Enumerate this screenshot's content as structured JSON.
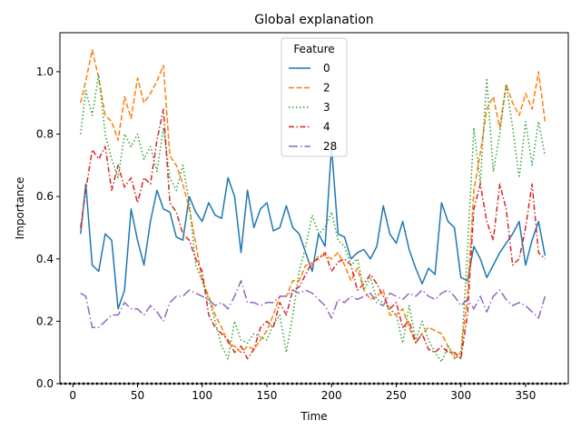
{
  "chart_data": {
    "type": "line",
    "title": "Global explanation",
    "xlabel": "Time",
    "ylabel": "Importance",
    "xlim": [
      -10,
      383
    ],
    "ylim": [
      0,
      1.125
    ],
    "xticks": [
      0,
      50,
      100,
      150,
      200,
      250,
      300,
      350
    ],
    "yticks": [
      0.0,
      0.2,
      0.4,
      0.6,
      0.8,
      1.0
    ],
    "ytick_labels": [
      "0.0",
      "0.2",
      "0.4",
      "0.6",
      "0.8",
      "1.0"
    ],
    "grid": false,
    "legend": {
      "title": "Feature",
      "placement": "top-center"
    },
    "baseline": {
      "y": 0,
      "style": "dotted",
      "color": "#000000"
    },
    "series": [
      {
        "name": "0",
        "color": "#1f77b4",
        "dash": "solid",
        "x": [
          6,
          10,
          15,
          20,
          25,
          30,
          35,
          40,
          45,
          50,
          55,
          60,
          65,
          70,
          75,
          80,
          85,
          90,
          95,
          100,
          105,
          110,
          115,
          120,
          125,
          130,
          135,
          140,
          145,
          150,
          155,
          160,
          165,
          170,
          175,
          180,
          185,
          190,
          195,
          200,
          205,
          210,
          215,
          220,
          225,
          230,
          235,
          240,
          245,
          250,
          255,
          260,
          265,
          270,
          275,
          280,
          285,
          290,
          295,
          300,
          305,
          310,
          315,
          320,
          325,
          330,
          335,
          340,
          345,
          350,
          355,
          360,
          365
        ],
        "values": [
          0.48,
          0.64,
          0.38,
          0.36,
          0.48,
          0.46,
          0.24,
          0.3,
          0.56,
          0.46,
          0.38,
          0.52,
          0.62,
          0.56,
          0.55,
          0.47,
          0.46,
          0.6,
          0.55,
          0.52,
          0.58,
          0.54,
          0.53,
          0.66,
          0.6,
          0.42,
          0.62,
          0.5,
          0.56,
          0.58,
          0.49,
          0.5,
          0.57,
          0.5,
          0.48,
          0.42,
          0.36,
          0.48,
          0.44,
          0.76,
          0.48,
          0.47,
          0.4,
          0.42,
          0.43,
          0.4,
          0.44,
          0.57,
          0.48,
          0.45,
          0.52,
          0.43,
          0.37,
          0.32,
          0.37,
          0.35,
          0.58,
          0.52,
          0.5,
          0.34,
          0.33,
          0.44,
          0.4,
          0.34,
          0.38,
          0.42,
          0.45,
          0.48,
          0.52,
          0.38,
          0.46,
          0.52,
          0.41
        ]
      },
      {
        "name": "2",
        "color": "#ff7f0e",
        "dash": "dashed",
        "x": [
          6,
          10,
          15,
          20,
          25,
          30,
          35,
          40,
          45,
          50,
          55,
          60,
          65,
          70,
          75,
          80,
          85,
          90,
          95,
          100,
          105,
          110,
          115,
          120,
          125,
          130,
          135,
          140,
          145,
          150,
          155,
          160,
          165,
          170,
          175,
          180,
          185,
          190,
          195,
          200,
          205,
          210,
          215,
          220,
          225,
          230,
          235,
          240,
          245,
          250,
          255,
          260,
          265,
          270,
          275,
          280,
          285,
          290,
          295,
          300,
          305,
          310,
          315,
          320,
          325,
          330,
          335,
          340,
          345,
          350,
          355,
          360,
          365
        ],
        "values": [
          0.9,
          0.97,
          1.07,
          0.98,
          0.86,
          0.84,
          0.78,
          0.92,
          0.85,
          0.98,
          0.9,
          0.93,
          0.97,
          1.02,
          0.73,
          0.7,
          0.64,
          0.56,
          0.45,
          0.33,
          0.28,
          0.22,
          0.18,
          0.13,
          0.12,
          0.1,
          0.12,
          0.11,
          0.14,
          0.17,
          0.22,
          0.28,
          0.28,
          0.33,
          0.33,
          0.38,
          0.38,
          0.41,
          0.41,
          0.4,
          0.42,
          0.38,
          0.33,
          0.37,
          0.3,
          0.27,
          0.28,
          0.3,
          0.22,
          0.22,
          0.24,
          0.18,
          0.13,
          0.16,
          0.18,
          0.17,
          0.16,
          0.12,
          0.08,
          0.1,
          0.28,
          0.62,
          0.74,
          0.88,
          0.92,
          0.82,
          0.96,
          0.9,
          0.86,
          0.93,
          0.88,
          1.0,
          0.84
        ]
      },
      {
        "name": "3",
        "color": "#2ca02c",
        "dash": "dotted",
        "x": [
          6,
          10,
          15,
          20,
          25,
          30,
          35,
          40,
          45,
          50,
          55,
          60,
          65,
          70,
          75,
          80,
          85,
          90,
          95,
          100,
          105,
          110,
          115,
          120,
          125,
          130,
          135,
          140,
          145,
          150,
          155,
          160,
          165,
          170,
          175,
          180,
          185,
          190,
          195,
          200,
          205,
          210,
          215,
          220,
          225,
          230,
          235,
          240,
          245,
          250,
          255,
          260,
          265,
          270,
          275,
          280,
          285,
          290,
          295,
          300,
          305,
          310,
          315,
          320,
          325,
          330,
          335,
          340,
          345,
          350,
          355,
          360,
          365
        ],
        "values": [
          0.8,
          0.94,
          0.86,
          0.99,
          0.8,
          0.72,
          0.66,
          0.8,
          0.76,
          0.8,
          0.72,
          0.76,
          0.68,
          0.82,
          0.66,
          0.62,
          0.7,
          0.58,
          0.38,
          0.33,
          0.27,
          0.2,
          0.12,
          0.08,
          0.2,
          0.14,
          0.13,
          0.16,
          0.15,
          0.14,
          0.19,
          0.22,
          0.1,
          0.22,
          0.36,
          0.44,
          0.54,
          0.48,
          0.5,
          0.55,
          0.46,
          0.44,
          0.38,
          0.4,
          0.3,
          0.34,
          0.27,
          0.26,
          0.24,
          0.22,
          0.13,
          0.25,
          0.14,
          0.2,
          0.14,
          0.1,
          0.07,
          0.12,
          0.09,
          0.08,
          0.42,
          0.82,
          0.64,
          0.98,
          0.68,
          0.8,
          0.96,
          0.82,
          0.66,
          0.84,
          0.7,
          0.84,
          0.73
        ]
      },
      {
        "name": "4",
        "color": "#d62728",
        "dash": "dashdot",
        "x": [
          6,
          10,
          15,
          20,
          25,
          30,
          35,
          40,
          45,
          50,
          55,
          60,
          65,
          70,
          75,
          80,
          85,
          90,
          95,
          100,
          105,
          110,
          115,
          120,
          125,
          130,
          135,
          140,
          145,
          150,
          155,
          160,
          165,
          170,
          175,
          180,
          185,
          190,
          195,
          200,
          205,
          210,
          215,
          220,
          225,
          230,
          235,
          240,
          245,
          250,
          255,
          260,
          265,
          270,
          275,
          280,
          285,
          290,
          295,
          300,
          305,
          310,
          315,
          320,
          325,
          330,
          335,
          340,
          345,
          350,
          355,
          360,
          365
        ],
        "values": [
          0.5,
          0.62,
          0.75,
          0.72,
          0.76,
          0.62,
          0.7,
          0.63,
          0.66,
          0.58,
          0.66,
          0.64,
          0.78,
          0.88,
          0.58,
          0.55,
          0.48,
          0.46,
          0.4,
          0.36,
          0.22,
          0.18,
          0.16,
          0.14,
          0.1,
          0.12,
          0.08,
          0.11,
          0.18,
          0.2,
          0.18,
          0.26,
          0.22,
          0.3,
          0.31,
          0.35,
          0.39,
          0.4,
          0.42,
          0.36,
          0.39,
          0.4,
          0.38,
          0.3,
          0.32,
          0.35,
          0.32,
          0.28,
          0.24,
          0.26,
          0.18,
          0.2,
          0.13,
          0.16,
          0.11,
          0.1,
          0.12,
          0.1,
          0.1,
          0.08,
          0.22,
          0.56,
          0.64,
          0.52,
          0.46,
          0.64,
          0.56,
          0.38,
          0.4,
          0.5,
          0.64,
          0.42,
          0.4
        ]
      },
      {
        "name": "28",
        "color": "#9467bd",
        "dash": "longdashdot",
        "x": [
          6,
          10,
          15,
          20,
          25,
          30,
          35,
          40,
          45,
          50,
          55,
          60,
          65,
          70,
          75,
          80,
          85,
          90,
          95,
          100,
          105,
          110,
          115,
          120,
          125,
          130,
          135,
          140,
          145,
          150,
          155,
          160,
          165,
          170,
          175,
          180,
          185,
          190,
          195,
          200,
          205,
          210,
          215,
          220,
          225,
          230,
          235,
          240,
          245,
          250,
          255,
          260,
          265,
          270,
          275,
          280,
          285,
          290,
          295,
          300,
          305,
          310,
          315,
          320,
          325,
          330,
          335,
          340,
          345,
          350,
          355,
          360,
          365
        ],
        "values": [
          0.29,
          0.28,
          0.18,
          0.18,
          0.2,
          0.22,
          0.22,
          0.26,
          0.24,
          0.24,
          0.22,
          0.25,
          0.23,
          0.2,
          0.26,
          0.28,
          0.28,
          0.3,
          0.29,
          0.28,
          0.27,
          0.25,
          0.26,
          0.24,
          0.28,
          0.33,
          0.26,
          0.26,
          0.25,
          0.26,
          0.26,
          0.28,
          0.28,
          0.3,
          0.29,
          0.3,
          0.29,
          0.27,
          0.25,
          0.21,
          0.27,
          0.26,
          0.28,
          0.27,
          0.28,
          0.29,
          0.26,
          0.25,
          0.29,
          0.28,
          0.27,
          0.29,
          0.28,
          0.3,
          0.28,
          0.27,
          0.29,
          0.3,
          0.28,
          0.25,
          0.27,
          0.24,
          0.28,
          0.23,
          0.28,
          0.3,
          0.27,
          0.25,
          0.26,
          0.25,
          0.23,
          0.21,
          0.28
        ]
      }
    ]
  }
}
